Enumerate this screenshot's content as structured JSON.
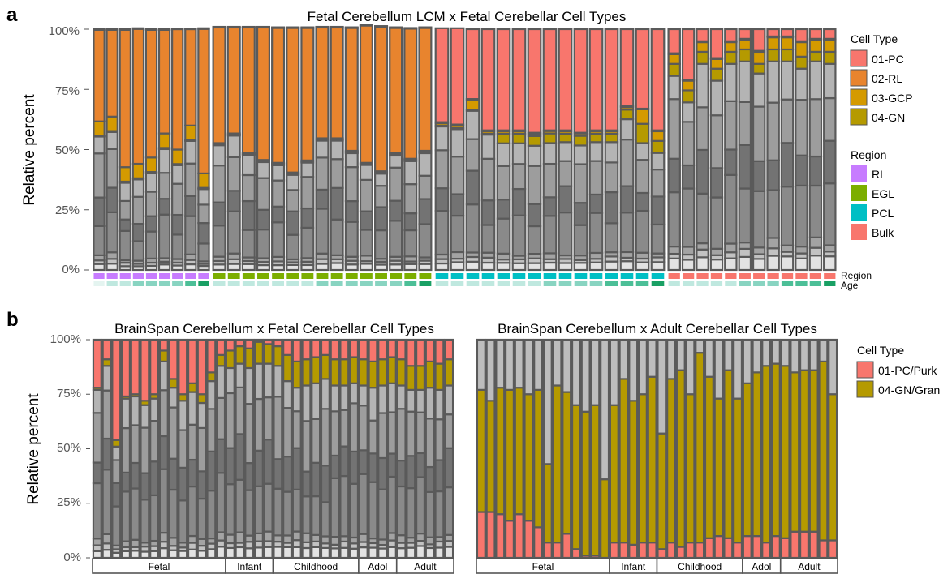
{
  "panel_labels": [
    "a",
    "b"
  ],
  "colors": {
    "plot_bg": "#ffffff",
    "bar_stroke": "#5a5a5a",
    "grey_shades": [
      "#e2e2e2",
      "#c2c2c2",
      "#a3a3a3",
      "#8a8a8a",
      "#737373",
      "#9d9d9d",
      "#b4b4b4"
    ],
    "cell_types": {
      "01-PC": "#f8766d",
      "02-RL": "#e8842e",
      "03-GCP": "#d49a00",
      "04-GN": "#b59a00"
    },
    "regions": {
      "RL": "#c77cff",
      "EGL": "#7cae00",
      "PCL": "#00bfc4",
      "Bulk": "#f8766d"
    },
    "age_shades": [
      "#e4f4f0",
      "#bfe8df",
      "#88d4c1",
      "#4cbf97",
      "#19a064"
    ]
  },
  "chart_data": [
    {
      "id": "a",
      "type": "bar",
      "stacked": true,
      "title": "Fetal Cerebellum LCM x Fetal Cerebellar Cell Types",
      "ylabel": "Relative percent",
      "ylim": [
        0,
        100
      ],
      "yticks": [
        "0%",
        "25%",
        "50%",
        "75%",
        "100%"
      ],
      "groups": [
        {
          "region": "RL",
          "n": 9
        },
        {
          "region": "EGL",
          "n": 15
        },
        {
          "region": "PCL",
          "n": 15
        },
        {
          "region": "Bulk",
          "n": 12
        }
      ],
      "strip_labels": [
        "Region",
        "Age"
      ],
      "legend": {
        "title": "Cell Type",
        "items": [
          "01-PC",
          "02-RL",
          "03-GCP",
          "04-GN"
        ],
        "region_title": "Region",
        "region_items": [
          "RL",
          "EGL",
          "PCL",
          "Bulk"
        ]
      },
      "age_levels": [
        0,
        1,
        1,
        2,
        2,
        2,
        2,
        3,
        4,
        1,
        1,
        1,
        1,
        1,
        1,
        1,
        2,
        2,
        2,
        2,
        2,
        2,
        3,
        4,
        1,
        1,
        1,
        1,
        1,
        1,
        1,
        2,
        2,
        2,
        2,
        3,
        3,
        3,
        4,
        1,
        1,
        1,
        1,
        1,
        2,
        2,
        2,
        3,
        3,
        3,
        4
      ],
      "highlight_series": [
        {
          "name": "04-GN",
          "color": "#b59a00",
          "values": [
            0.3,
            0.4,
            0.5,
            0.5,
            0.6,
            0.5,
            0.5,
            0.4,
            0.5,
            0.4,
            0.4,
            0.4,
            0.4,
            0.5,
            0.5,
            0.4,
            0.5,
            0.5,
            0.5,
            0.4,
            0.5,
            0.5,
            0.5,
            0.5,
            0.4,
            0.5,
            0.5,
            0.4,
            4.0,
            4.0,
            4.0,
            4.0,
            3.5,
            4.0,
            3.5,
            3.5,
            4.0,
            8.0,
            5.0,
            5.0,
            5.0,
            5.0,
            5.0,
            5.0,
            5.0,
            4.0,
            5.0,
            5.0,
            5.0,
            4.0,
            5.0
          ]
        },
        {
          "name": "03-GCP",
          "color": "#d49a00",
          "values": [
            6,
            6,
            6,
            6,
            6,
            6,
            6,
            6,
            6,
            0.5,
            0.5,
            0.5,
            0.5,
            0.5,
            0.5,
            0.5,
            0.5,
            0.5,
            0.5,
            0.5,
            0.5,
            0.5,
            0.5,
            0.5,
            1.0,
            1.0,
            4.0,
            1.0,
            1.0,
            1.0,
            1.0,
            1.0,
            1.0,
            1.0,
            1.0,
            1.0,
            1.0,
            6.0,
            4.0,
            4.0,
            4.0,
            4.0,
            4.0,
            4.0,
            4.0,
            5.0,
            5.0,
            5.0,
            6.0,
            5.0,
            5.0
          ]
        },
        {
          "name": "02-RL",
          "color": "#e8842e",
          "values": [
            38,
            36,
            57,
            56,
            53,
            43,
            50,
            40,
            60,
            48,
            44,
            52,
            55,
            56,
            60,
            55,
            46,
            46,
            51,
            57,
            60,
            52,
            54,
            51,
            0.4,
            0.4,
            0.4,
            0.4,
            0.4,
            0.4,
            0.4,
            0.3,
            0.4,
            0.3,
            0.4,
            0.4,
            0.4,
            0.3,
            0.4,
            0.4,
            0.4,
            0.4,
            0.4,
            0.4,
            0.4,
            0.4,
            0.4,
            0.4,
            0.4,
            0.4,
            0.4
          ]
        },
        {
          "name": "01-PC",
          "color": "#f8766d",
          "values": [
            0.3,
            0.3,
            0.3,
            0.3,
            0.3,
            0.3,
            0.3,
            0.3,
            0.3,
            0.3,
            0.3,
            0.3,
            0.3,
            0.3,
            0.3,
            0.3,
            0.3,
            0.3,
            0.3,
            0.3,
            0.3,
            0.3,
            0.3,
            0.3,
            39,
            40,
            29,
            42,
            42,
            42,
            43,
            42,
            42,
            43,
            42,
            42,
            32,
            33,
            42,
            10,
            21,
            5,
            12,
            5,
            4,
            9,
            3,
            3,
            5,
            4,
            4
          ]
        }
      ],
      "grey_totals": [
        55.4,
        57.3,
        36.2,
        37.6,
        40.1,
        50.2,
        43.5,
        53.6,
        33.6,
        51.8,
        55.8,
        47.8,
        44.8,
        43.5,
        39.5,
        44.6,
        53.7,
        53.7,
        48.5,
        43.6,
        40.0,
        47.5,
        45.2,
        48.5,
        59.6,
        58.5,
        66.1,
        56.2,
        52.6,
        52.6,
        51.6,
        52.7,
        53.1,
        51.7,
        53.1,
        53.1,
        62.6,
        52.7,
        48.6,
        80.6,
        69.6,
        85.6,
        78.6,
        85.6,
        86.6,
        81.6,
        86.6,
        86.6,
        83.6,
        86.6,
        85.6
      ]
    },
    {
      "id": "b1",
      "type": "bar",
      "stacked": true,
      "title": "BrainSpan Cerebellum x Fetal Cerebellar Cell Types",
      "ylabel": "Relative percent",
      "ylim": [
        0,
        100
      ],
      "yticks": [
        "0%",
        "25%",
        "50%",
        "75%",
        "100%"
      ],
      "age_groups": [
        {
          "label": "Fetal",
          "n": 14
        },
        {
          "label": "Infant",
          "n": 5
        },
        {
          "label": "Childhood",
          "n": 9
        },
        {
          "label": "Adol",
          "n": 4
        },
        {
          "label": "Adult",
          "n": 6
        }
      ],
      "legend": null,
      "highlight_series": [
        {
          "name": "04-GN",
          "color": "#b59a00",
          "values": [
            1,
            3,
            3,
            1,
            1,
            2,
            2,
            5,
            4,
            3,
            4,
            4,
            4,
            5,
            8,
            8,
            9,
            10,
            9,
            9,
            12,
            12,
            12,
            12,
            11,
            12,
            12,
            12,
            12,
            12,
            12,
            12,
            12,
            11,
            11,
            12,
            12,
            12
          ]
        },
        {
          "name": "01-PC",
          "color": "#f8766d",
          "values": [
            22,
            9,
            46,
            26,
            25,
            28,
            25,
            5,
            18,
            25,
            20,
            25,
            15,
            7,
            5,
            3,
            4,
            1,
            2,
            3,
            7,
            10,
            9,
            8,
            7,
            9,
            9,
            8,
            9,
            10,
            9,
            8,
            9,
            12,
            12,
            10,
            11,
            9
          ]
        }
      ],
      "grey_totals": [
        77,
        88,
        51,
        73,
        74,
        70,
        73,
        90,
        78,
        72,
        76,
        71,
        81,
        88,
        87,
        89,
        87,
        89,
        89,
        88,
        81,
        78,
        79,
        80,
        82,
        79,
        79,
        80,
        79,
        78,
        79,
        80,
        79,
        77,
        77,
        78,
        77,
        79
      ]
    },
    {
      "id": "b2",
      "type": "bar",
      "stacked": true,
      "title": "BrainSpan Cerebellum x Adult Cerebellar Cell Types",
      "ylim": [
        0,
        100
      ],
      "age_groups": [
        {
          "label": "Fetal",
          "n": 14
        },
        {
          "label": "Infant",
          "n": 5
        },
        {
          "label": "Childhood",
          "n": 9
        },
        {
          "label": "Adol",
          "n": 4
        },
        {
          "label": "Adult",
          "n": 6
        }
      ],
      "legend": {
        "title": "Cell Type",
        "items": [
          "01-PC/Purk",
          "04-GN/Gran"
        ]
      },
      "series": [
        {
          "name": "01-PC/Purk",
          "color": "#f8766d",
          "values": [
            21,
            21,
            20,
            17,
            20,
            17,
            14,
            7,
            7,
            11,
            4,
            1,
            1,
            0,
            7,
            7,
            6,
            7,
            7,
            4,
            7,
            5,
            7,
            7,
            9,
            10,
            9,
            7,
            10,
            10,
            7,
            10,
            9,
            12,
            12,
            12,
            8,
            8
          ]
        },
        {
          "name": "04-GN/Gran",
          "color": "#b59a00",
          "values": [
            56,
            51,
            58,
            60,
            58,
            58,
            63,
            36,
            72,
            65,
            66,
            66,
            69,
            36,
            63,
            75,
            66,
            68,
            76,
            53,
            75,
            81,
            68,
            87,
            74,
            63,
            77,
            66,
            70,
            75,
            81,
            79,
            79,
            73,
            74,
            74,
            82,
            67
          ]
        }
      ]
    }
  ]
}
